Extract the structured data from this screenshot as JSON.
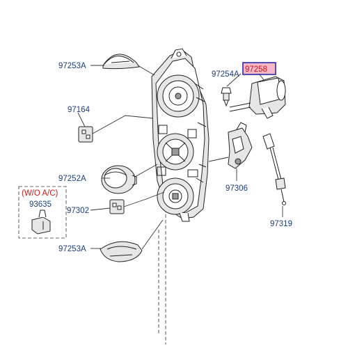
{
  "diagram": {
    "callouts": {
      "knob_top": "97253A",
      "clip_upper": "97164",
      "screw": "97254A",
      "actuator": "97258",
      "knob_mid": "97252A",
      "lever_assy": "97306",
      "woac_note": "(W/O A/C)",
      "woac_part": "93635",
      "clip_lower": "97302",
      "cable": "97319",
      "knob_bottom": "97253A"
    },
    "colors": {
      "label_text": "#1c3d7a",
      "note_text": "#d01818",
      "highlight_fill": "#f5b8c8",
      "highlight_border": "#2a2aa8"
    }
  }
}
